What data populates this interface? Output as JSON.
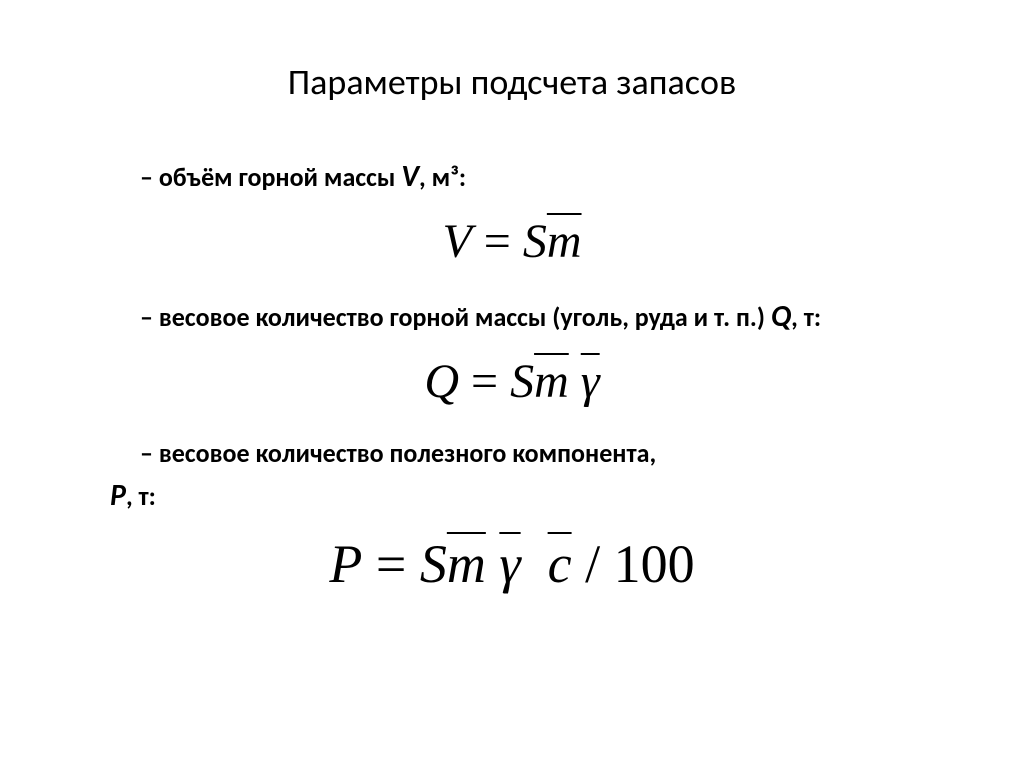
{
  "title": "Параметры подсчета запасов",
  "items": [
    {
      "prefix": "– объём горной массы ",
      "variable": "V",
      "suffix": ", м³:"
    },
    {
      "prefix": "– весовое количество горной массы (уголь, руда и т. п.) ",
      "variable": "Q",
      "suffix": ", т:"
    },
    {
      "line1_prefix": "– весовое количество полезного компонента,",
      "line2_variable": "P",
      "line2_suffix": ", т:"
    }
  ],
  "formulas": {
    "f1": {
      "lhs": "V",
      "eq": " = ",
      "r1": "S",
      "r2": "m"
    },
    "f2": {
      "lhs": "Q",
      "eq": " = ",
      "r1": "S",
      "r2": "m",
      "r3": "γ"
    },
    "f3": {
      "lhs": "P",
      "eq": " = ",
      "r1": "S",
      "r2": "m",
      "r3": "γ",
      "r4": "c",
      "tail": " / 100"
    }
  },
  "styling": {
    "background_color": "#ffffff",
    "text_color": "#000000",
    "title_fontsize": 36,
    "label_fontsize": 26,
    "formula_fontsize": 48,
    "formula_large_fontsize": 54,
    "font_family_text": "Calibri",
    "font_family_math": "Cambria Math"
  }
}
